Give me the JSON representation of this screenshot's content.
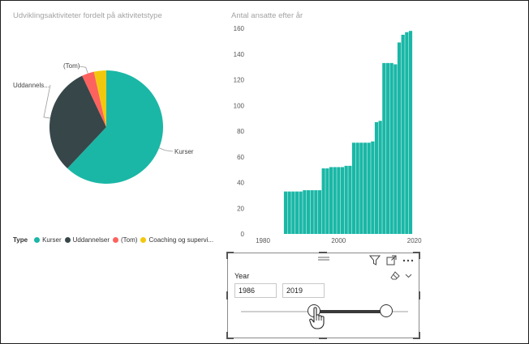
{
  "pie_chart": {
    "title": "Udviklingsaktiviteter fordelt på aktivitetstype",
    "labels": {
      "kurser": "Kurser",
      "uddannelser": "Uddannels...",
      "tom": "(Tom)"
    },
    "legend": {
      "title": "Type",
      "items": [
        {
          "label": "Kurser",
          "color": "#1ab7a6"
        },
        {
          "label": "Uddannelser",
          "color": "#374649"
        },
        {
          "label": "(Tom)",
          "color": "#fd625e"
        },
        {
          "label": "Coaching og supervi...",
          "color": "#f2c80f"
        }
      ]
    }
  },
  "bar_chart": {
    "title": "Antal ansatte efter år"
  },
  "chart_data": [
    {
      "type": "pie",
      "title": "Udviklingsaktiviteter fordelt på aktivitetstype",
      "categories": [
        "Kurser",
        "Uddannelser",
        "(Tom)",
        "Coaching og supervi..."
      ],
      "values": [
        62,
        31,
        3.5,
        3.5
      ],
      "colors": [
        "#1ab7a6",
        "#374649",
        "#fd625e",
        "#f2c80f"
      ],
      "legend": "bottom-left"
    },
    {
      "type": "bar",
      "title": "Antal ansatte efter år",
      "xlabel": "",
      "ylabel": "",
      "x": [
        1986,
        1987,
        1988,
        1989,
        1990,
        1991,
        1992,
        1993,
        1994,
        1995,
        1996,
        1997,
        1998,
        1999,
        2000,
        2001,
        2002,
        2003,
        2004,
        2005,
        2006,
        2007,
        2008,
        2009,
        2010,
        2011,
        2012,
        2013,
        2014,
        2015,
        2016,
        2017,
        2018,
        2019
      ],
      "values": [
        33,
        33,
        33,
        33,
        33,
        34,
        34,
        34,
        34,
        34,
        51,
        51,
        52,
        52,
        52,
        52,
        53,
        53,
        71,
        71,
        71,
        71,
        71,
        72,
        87,
        88,
        133,
        133,
        133,
        132,
        149,
        155,
        157,
        158
      ],
      "xlim": [
        1977,
        2022
      ],
      "ylim": [
        0,
        160
      ],
      "yticks": [
        0,
        20,
        40,
        60,
        80,
        100,
        120,
        140,
        160
      ],
      "xticks": [
        1980,
        2000,
        2020
      ],
      "color": "#1ab7a6",
      "grid": false
    }
  ],
  "slicer": {
    "title": "Year",
    "start_value": "1986",
    "end_value": "2019",
    "range_min": 1986,
    "range_max": 2019
  }
}
